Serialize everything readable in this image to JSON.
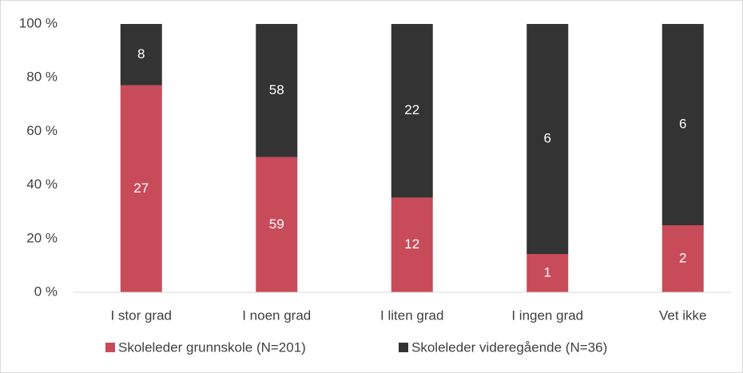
{
  "chart_data": {
    "type": "bar",
    "stacking": "percent",
    "categories": [
      "I stor grad",
      "I noen grad",
      "I liten grad",
      "I ingen grad",
      "Vet ikke"
    ],
    "series": [
      {
        "name": "Skoleleder grunnskole (N=201)",
        "color": "#c84b5a",
        "values": [
          27,
          59,
          12,
          1,
          2
        ]
      },
      {
        "name": "Skoleleder videregående (N=36)",
        "color": "#333333",
        "values": [
          8,
          58,
          22,
          6,
          6
        ]
      }
    ],
    "ylim": [
      0,
      100
    ],
    "yticks": [
      {
        "value": 0,
        "label": "0 %"
      },
      {
        "value": 20,
        "label": "20 %"
      },
      {
        "value": 40,
        "label": "40 %"
      },
      {
        "value": 60,
        "label": "60 %"
      },
      {
        "value": 80,
        "label": "80 %"
      },
      {
        "value": 100,
        "label": "100 %"
      }
    ],
    "grid": false,
    "legend": "bottom"
  }
}
